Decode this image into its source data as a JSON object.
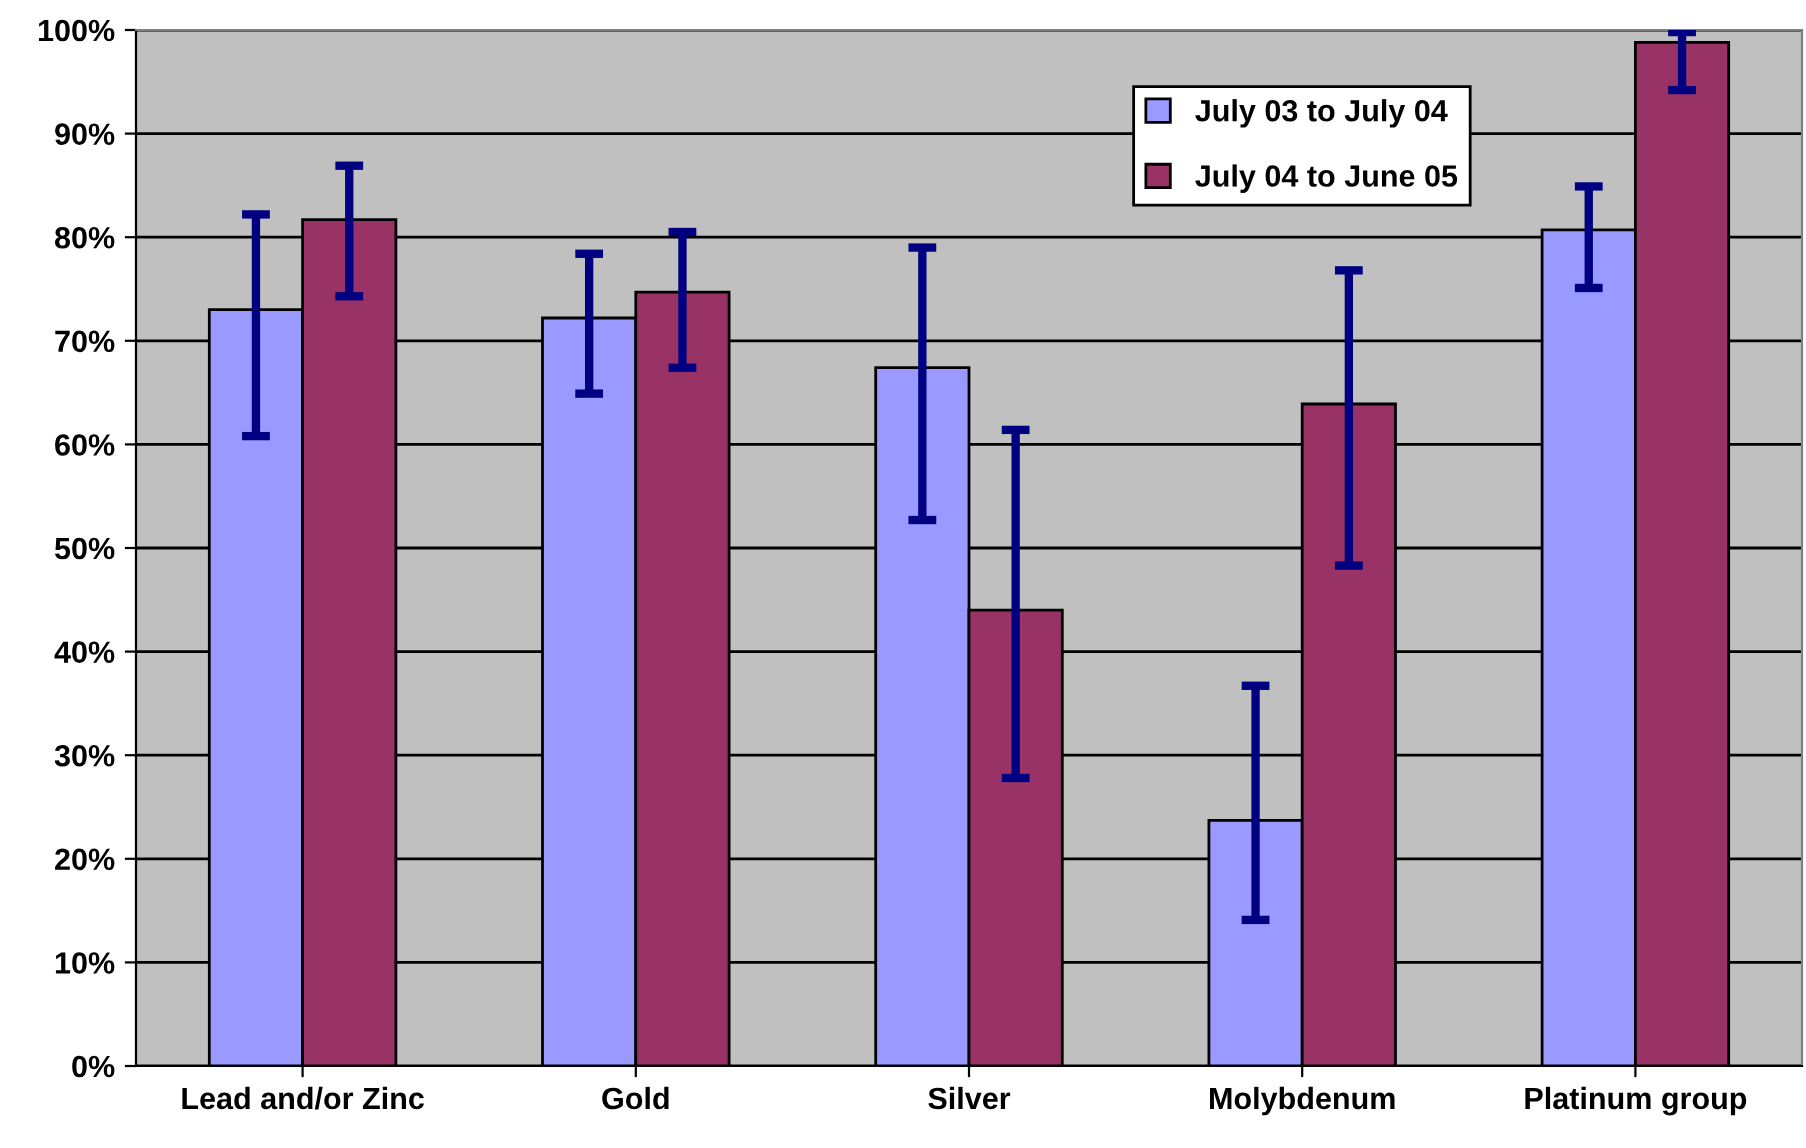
{
  "chart_data": {
    "type": "bar",
    "categories": [
      "Lead and/or Zinc",
      "Gold",
      "Silver",
      "Molybdenum",
      "Platinum group"
    ],
    "series": [
      {
        "name": "July 03 to July 04",
        "color": "#9999ff",
        "values": [
          73.0,
          72.2,
          67.4,
          23.7,
          80.7
        ],
        "errors": [
          [
            60.8,
            82.2
          ],
          [
            64.9,
            78.4
          ],
          [
            52.7,
            79.0
          ],
          [
            14.1,
            36.7
          ],
          [
            75.1,
            84.9
          ]
        ]
      },
      {
        "name": "July 04 to June 05",
        "color": "#993366",
        "values": [
          81.7,
          74.7,
          44.0,
          63.9,
          98.8
        ],
        "errors": [
          [
            74.3,
            86.9
          ],
          [
            67.4,
            80.5
          ],
          [
            27.8,
            61.4
          ],
          [
            48.3,
            76.8
          ],
          [
            94.2,
            99.8
          ]
        ]
      }
    ],
    "ylim": [
      0,
      100
    ],
    "yticks": [
      {
        "value": 0,
        "label": "0%"
      },
      {
        "value": 10,
        "label": "10%"
      },
      {
        "value": 20,
        "label": "20%"
      },
      {
        "value": 30,
        "label": "30%"
      },
      {
        "value": 40,
        "label": "40%"
      },
      {
        "value": 50,
        "label": "50%"
      },
      {
        "value": 60,
        "label": "60%"
      },
      {
        "value": 70,
        "label": "70%"
      },
      {
        "value": 80,
        "label": "80%"
      },
      {
        "value": 90,
        "label": "90%"
      },
      {
        "value": 100,
        "label": "100%"
      }
    ],
    "grid": "y",
    "legend": "top right"
  }
}
